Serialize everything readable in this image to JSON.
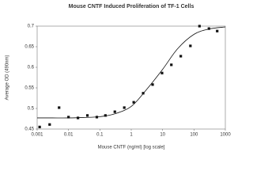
{
  "chart_data": {
    "type": "scatter",
    "title": "Mouse CNTF Induced Proliferation of TF-1 Cells",
    "x_label": "Mouse CNTF (ng/ml) [log scale]",
    "y_label": "Average OD (490nm)",
    "x_scale": "log",
    "xlim": [
      0.001,
      1000
    ],
    "ylim": [
      0.45,
      0.7
    ],
    "xticks": [
      0.001,
      0.01,
      0.1,
      1,
      10,
      100,
      1000
    ],
    "yticks": [
      0.45,
      0.5,
      0.55,
      0.6,
      0.65,
      0.7
    ],
    "x": [
      0.0012,
      0.0025,
      0.005,
      0.01,
      0.02,
      0.04,
      0.08,
      0.15,
      0.3,
      0.6,
      1.2,
      2.4,
      4.8,
      9.6,
      19,
      38,
      77,
      150,
      300,
      550
    ],
    "values": [
      0.455,
      0.461,
      0.502,
      0.479,
      0.477,
      0.483,
      0.479,
      0.483,
      0.492,
      0.502,
      0.515,
      0.537,
      0.558,
      0.586,
      0.606,
      0.627,
      0.652,
      0.7,
      0.694,
      0.688
    ],
    "color": "#111111",
    "fit": {
      "x": [
        0.001,
        0.003,
        0.01,
        0.03,
        0.1,
        0.3,
        1,
        3,
        10,
        30,
        100,
        300,
        1000
      ],
      "values": [
        0.477,
        0.477,
        0.477,
        0.478,
        0.48,
        0.487,
        0.505,
        0.545,
        0.595,
        0.645,
        0.68,
        0.693,
        0.698
      ],
      "color": "#111111"
    }
  }
}
